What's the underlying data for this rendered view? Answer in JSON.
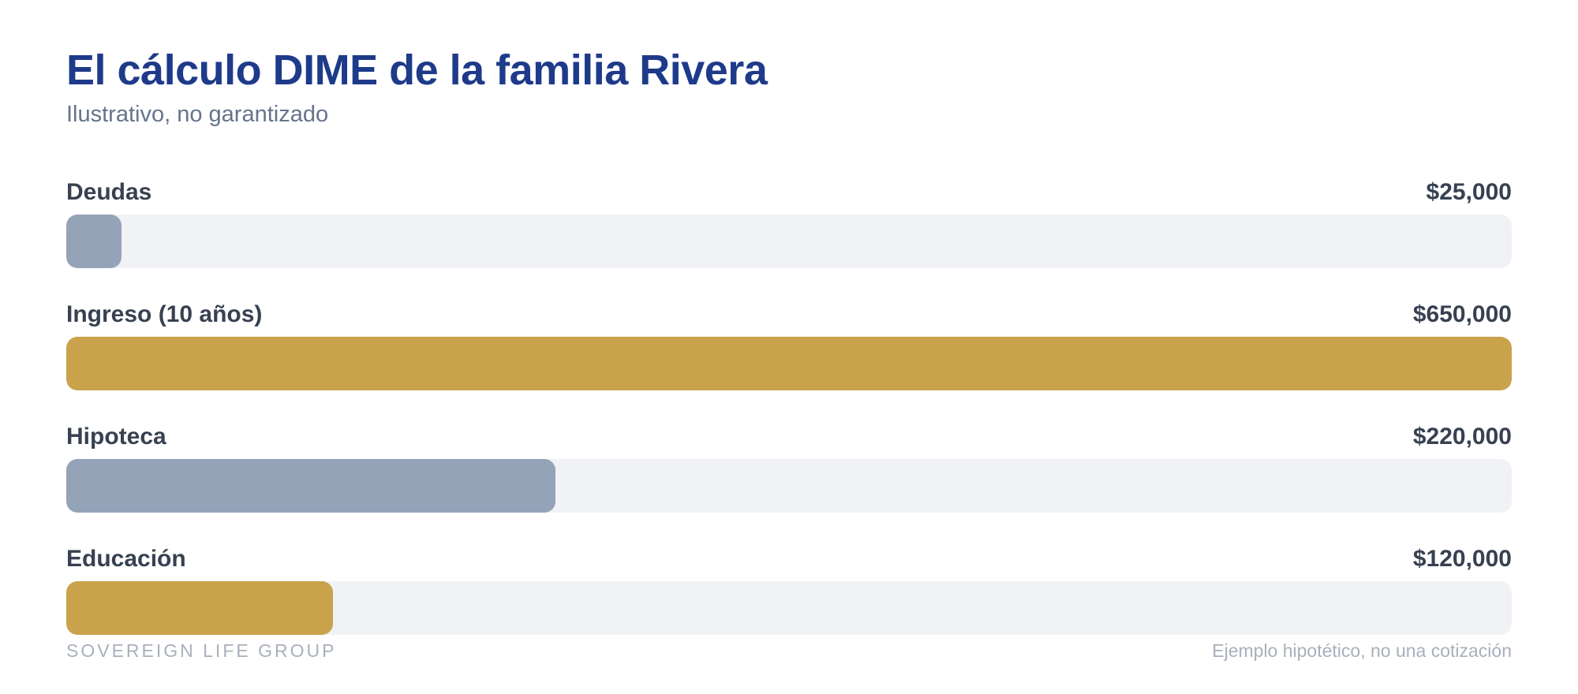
{
  "title": "El cálculo DIME de la familia Rivera",
  "subtitle": "Ilustrativo, no garantizado",
  "footer": {
    "brand": "SOVEREIGN LIFE GROUP",
    "disclaimer": "Ejemplo hipotético, no una cotización"
  },
  "colors": {
    "title": "#1e3a8a",
    "track": "#f1f2f6",
    "slate": "#94a3b8",
    "gold": "#c9a24b"
  },
  "chart_data": {
    "type": "bar",
    "orientation": "horizontal",
    "title": "El cálculo DIME de la familia Rivera",
    "subtitle": "Ilustrativo, no garantizado",
    "categories": [
      "Deudas",
      "Ingreso (10 años)",
      "Hipoteca",
      "Educación"
    ],
    "values": [
      25000,
      650000,
      220000,
      120000
    ],
    "value_labels": [
      "$25,000",
      "$650,000",
      "$220,000",
      "$120,000"
    ],
    "bar_colors": [
      "#94a3b8",
      "#c9a24b",
      "#94a3b8",
      "#c9a24b"
    ],
    "xlim": [
      0,
      650000
    ],
    "grid": false
  }
}
